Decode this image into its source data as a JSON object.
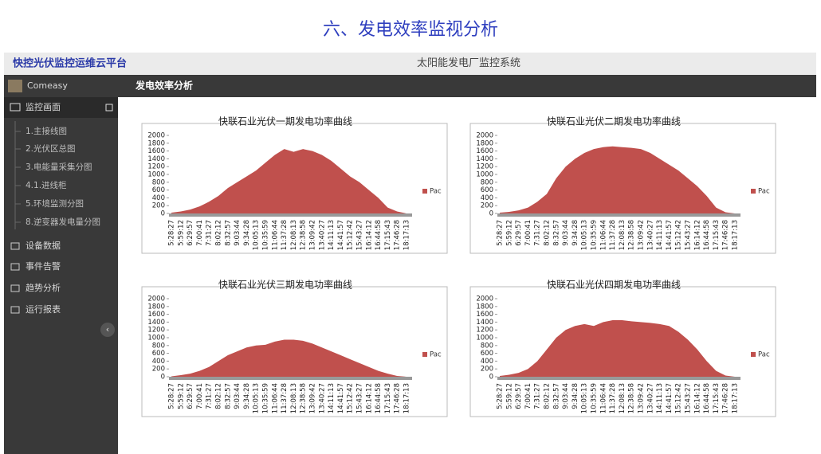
{
  "page_title": "六、发电效率监视分析",
  "header": {
    "brand": "快控光伏监控运维云平台",
    "system": "太阳能发电厂监控系统"
  },
  "sidebar": {
    "user": "Comeasy",
    "section": "监控画面",
    "subitems": [
      "1.主接线图",
      "2.光伏区总图",
      "3.电能量采集分图",
      "4.1.进线柜",
      "5.环境监测分图",
      "8.逆变器发电量分图"
    ],
    "items": [
      "设备数据",
      "事件告警",
      "趋势分析",
      "运行报表"
    ]
  },
  "content_title": "发电效率分析",
  "chart_data": [
    {
      "type": "area",
      "title": "快联石业光伏一期发电功率曲线",
      "categories": [
        "5:28:27",
        "5:59:12",
        "6:29:57",
        "7:00:41",
        "7:31:27",
        "8:02:12",
        "8:32:57",
        "9:03:44",
        "9:34:28",
        "10:05:13",
        "10:35:59",
        "11:06:44",
        "11:37:28",
        "12:08:13",
        "12:38:58",
        "13:09:42",
        "13:40:27",
        "14:11:13",
        "14:41:57",
        "15:12:42",
        "15:43:27",
        "16:14:12",
        "16:44:58",
        "17:15:43",
        "17:46:28",
        "18:17:13"
      ],
      "series": [
        {
          "name": "Pac",
          "color": "#c0504d",
          "values": [
            20,
            50,
            100,
            180,
            300,
            450,
            650,
            800,
            950,
            1100,
            1300,
            1500,
            1650,
            1580,
            1650,
            1600,
            1500,
            1350,
            1150,
            950,
            800,
            600,
            400,
            150,
            50,
            0
          ]
        }
      ],
      "ylim": [
        0,
        2000
      ],
      "yticks": [
        0,
        200,
        400,
        600,
        800,
        1000,
        1200,
        1400,
        1600,
        1800,
        2000
      ],
      "legend": "right"
    },
    {
      "type": "area",
      "title": "快联石业光伏二期发电功率曲线",
      "categories": [
        "5:28:27",
        "5:59:12",
        "6:29:57",
        "7:00:41",
        "7:31:27",
        "8:02:12",
        "8:32:57",
        "9:03:44",
        "9:34:28",
        "10:05:13",
        "10:35:59",
        "11:06:44",
        "11:37:28",
        "12:08:13",
        "12:38:58",
        "13:09:42",
        "13:40:27",
        "14:11:13",
        "14:41:57",
        "15:12:42",
        "15:43:27",
        "16:14:12",
        "16:44:58",
        "17:15:43",
        "17:46:28",
        "18:17:13"
      ],
      "series": [
        {
          "name": "Pac",
          "color": "#c0504d",
          "values": [
            20,
            40,
            80,
            150,
            300,
            500,
            900,
            1200,
            1400,
            1550,
            1650,
            1700,
            1720,
            1700,
            1680,
            1650,
            1550,
            1400,
            1250,
            1100,
            900,
            700,
            450,
            150,
            30,
            0
          ]
        }
      ],
      "ylim": [
        0,
        2000
      ],
      "yticks": [
        0,
        200,
        400,
        600,
        800,
        1000,
        1200,
        1400,
        1600,
        1800,
        2000
      ],
      "legend": "right"
    },
    {
      "type": "area",
      "title": "快联石业光伏三期发电功率曲线",
      "categories": [
        "5:28:27",
        "5:59:12",
        "6:29:57",
        "7:00:41",
        "7:31:27",
        "8:02:12",
        "8:32:57",
        "9:03:44",
        "9:34:28",
        "10:05:13",
        "10:35:59",
        "11:06:44",
        "11:37:28",
        "12:08:13",
        "12:38:58",
        "13:09:42",
        "13:40:27",
        "14:11:13",
        "14:41:57",
        "15:12:42",
        "15:43:27",
        "16:14:12",
        "16:44:58",
        "17:15:43",
        "17:46:28",
        "18:17:13"
      ],
      "series": [
        {
          "name": "Pac",
          "color": "#c0504d",
          "values": [
            10,
            40,
            80,
            150,
            250,
            400,
            550,
            650,
            750,
            800,
            820,
            900,
            950,
            950,
            920,
            850,
            750,
            650,
            550,
            450,
            350,
            250,
            150,
            80,
            20,
            0
          ]
        }
      ],
      "ylim": [
        0,
        2000
      ],
      "yticks": [
        0,
        200,
        400,
        600,
        800,
        1000,
        1200,
        1400,
        1600,
        1800,
        2000
      ],
      "legend": "right"
    },
    {
      "type": "area",
      "title": "快联石业光伏四期发电功率曲线",
      "categories": [
        "5:28:27",
        "5:59:12",
        "6:29:57",
        "7:00:41",
        "7:31:27",
        "8:02:12",
        "8:32:57",
        "9:03:44",
        "9:34:28",
        "10:05:13",
        "10:35:59",
        "11:06:44",
        "11:37:28",
        "12:08:13",
        "12:38:58",
        "13:09:42",
        "13:40:27",
        "14:11:13",
        "14:41:57",
        "15:12:42",
        "15:43:27",
        "16:14:12",
        "16:44:58",
        "17:15:43",
        "17:46:28",
        "18:17:13"
      ],
      "series": [
        {
          "name": "Pac",
          "color": "#c0504d",
          "values": [
            20,
            50,
            100,
            200,
            400,
            700,
            1000,
            1200,
            1300,
            1350,
            1300,
            1400,
            1450,
            1450,
            1420,
            1400,
            1380,
            1350,
            1300,
            1150,
            950,
            700,
            400,
            150,
            30,
            0
          ]
        }
      ],
      "ylim": [
        0,
        2000
      ],
      "yticks": [
        0,
        200,
        400,
        600,
        800,
        1000,
        1200,
        1400,
        1600,
        1800,
        2000
      ],
      "legend": "right"
    }
  ]
}
